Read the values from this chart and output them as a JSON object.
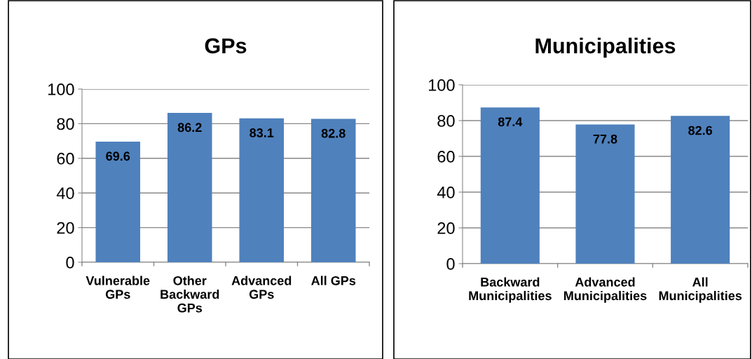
{
  "chart_data": [
    {
      "type": "bar",
      "title": "GPs",
      "categories": [
        "Vulnerable\nGPs",
        "Other\nBackward\nGPs",
        "Advanced\nGPs",
        "All GPs"
      ],
      "values": [
        69.6,
        86.2,
        83.1,
        82.8
      ],
      "color": "#4f81bd",
      "ylim": [
        0,
        100
      ],
      "yticks": [
        0,
        20,
        40,
        60,
        80,
        100
      ],
      "grid": "y",
      "data_labels": true
    },
    {
      "type": "bar",
      "title": "Municipalities",
      "categories": [
        "Backward\nMunicipalities",
        "Advanced\nMunicipalities",
        "All\nMunicipalities"
      ],
      "values": [
        87.4,
        77.8,
        82.6
      ],
      "color": "#4f81bd",
      "ylim": [
        0,
        100
      ],
      "yticks": [
        0,
        20,
        40,
        60,
        80,
        100
      ],
      "grid": "y",
      "data_labels": true
    }
  ]
}
